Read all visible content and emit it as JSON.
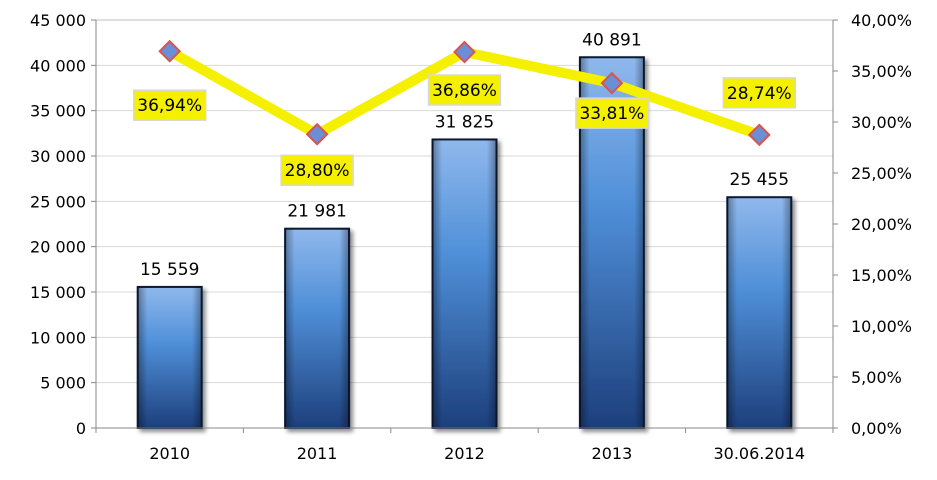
{
  "chart_data": {
    "type": "bar",
    "categories": [
      "2010",
      "2011",
      "2012",
      "2013",
      "30.06.2014"
    ],
    "series": [
      {
        "type": "bar",
        "axis": "left",
        "values": [
          15559,
          21981,
          31825,
          40891,
          25455
        ],
        "labels": [
          "15 559",
          "21 981",
          "31 825",
          "40 891",
          "25 455"
        ],
        "color": "#3a78c4"
      },
      {
        "type": "line",
        "axis": "right",
        "values": [
          0.3694,
          0.288,
          0.3686,
          0.3381,
          0.2874
        ],
        "labels": [
          "36,94%",
          "28,80%",
          "36,86%",
          "33,81%",
          "28,74%"
        ],
        "color": "#f5f000",
        "marker_color": "#6b8fd6",
        "marker_edge": "#d9534f"
      }
    ],
    "ylim": [
      0,
      45000
    ],
    "yticks": [
      "0",
      "5 000",
      "10 000",
      "15 000",
      "20 000",
      "25 000",
      "30 000",
      "35 000",
      "40 000",
      "45 000"
    ],
    "y2lim": [
      0,
      0.4
    ],
    "y2ticks": [
      "0,00%",
      "5,00%",
      "10,00%",
      "15,00%",
      "20,00%",
      "25,00%",
      "30,00%",
      "35,00%",
      "40,00%"
    ],
    "grid": true,
    "label_bg": "#f5f000"
  }
}
